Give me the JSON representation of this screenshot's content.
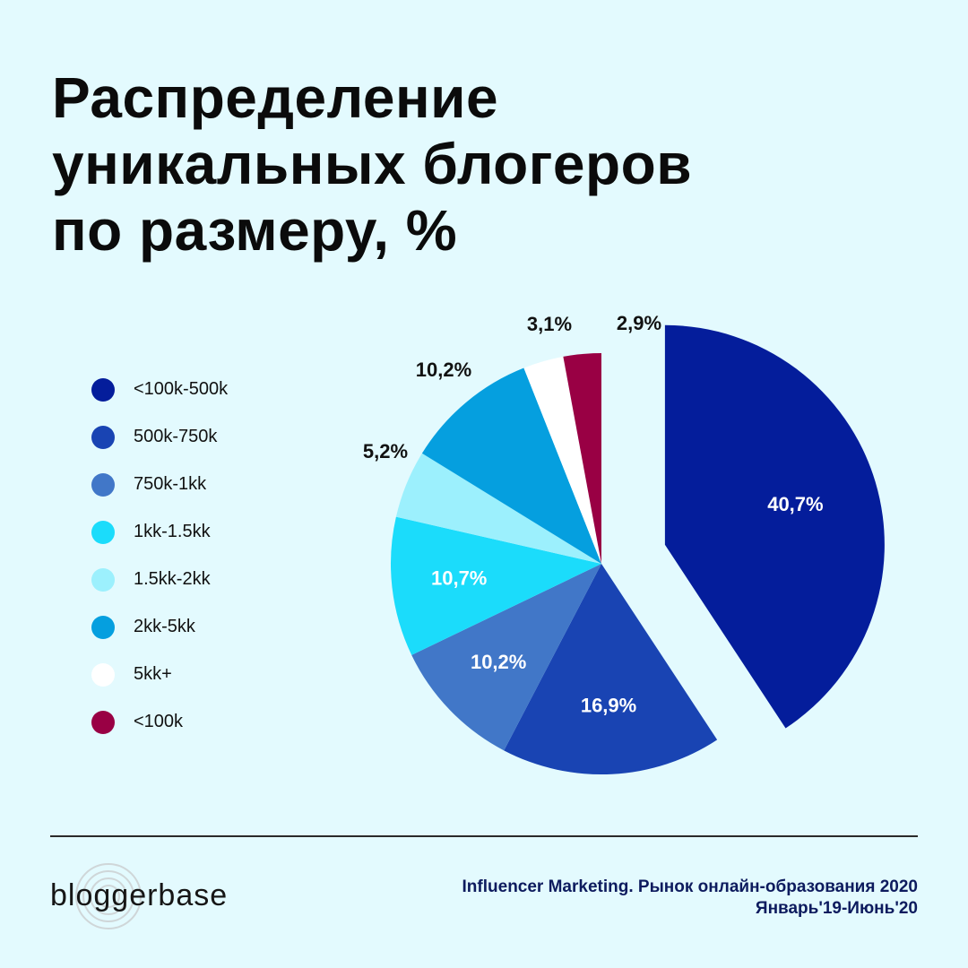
{
  "title": {
    "line1": "Распределение",
    "line2": "уникальных блогеров",
    "line3": "по размеру, %"
  },
  "chart_data": {
    "type": "pie",
    "title": "Распределение уникальных блогеров по размеру, %",
    "legend_position": "left",
    "slices": [
      {
        "label": "<100k-500k",
        "value": 40.7,
        "display": "40,7%",
        "color": "#041d9b",
        "exploded": true
      },
      {
        "label": "500k-750k",
        "value": 16.9,
        "display": "16,9%",
        "color": "#1944b3"
      },
      {
        "label": "750k-1kk",
        "value": 10.2,
        "display": "10,2%",
        "color": "#4177c8"
      },
      {
        "label": "1kk-1.5kk",
        "value": 10.7,
        "display": "10,7%",
        "color": "#1bdcfb"
      },
      {
        "label": "1.5kk-2kk",
        "value": 5.2,
        "display": "5,2%",
        "color": "#9cf0fd"
      },
      {
        "label": "2kk-5kk",
        "value": 10.2,
        "display": "10,2%",
        "color": "#059fdf"
      },
      {
        "label": "5kk+",
        "value": 3.1,
        "display": "3,1%",
        "color": "#ffffff"
      },
      {
        "label": "<100k",
        "value": 2.9,
        "display": "2,9%",
        "color": "#990044"
      }
    ]
  },
  "footer": {
    "logo_text": "bloggerbase",
    "source_line1": "Influencer Marketing. Рынок онлайн-образования 2020",
    "source_line2": "Январь'19-Июнь'20"
  }
}
